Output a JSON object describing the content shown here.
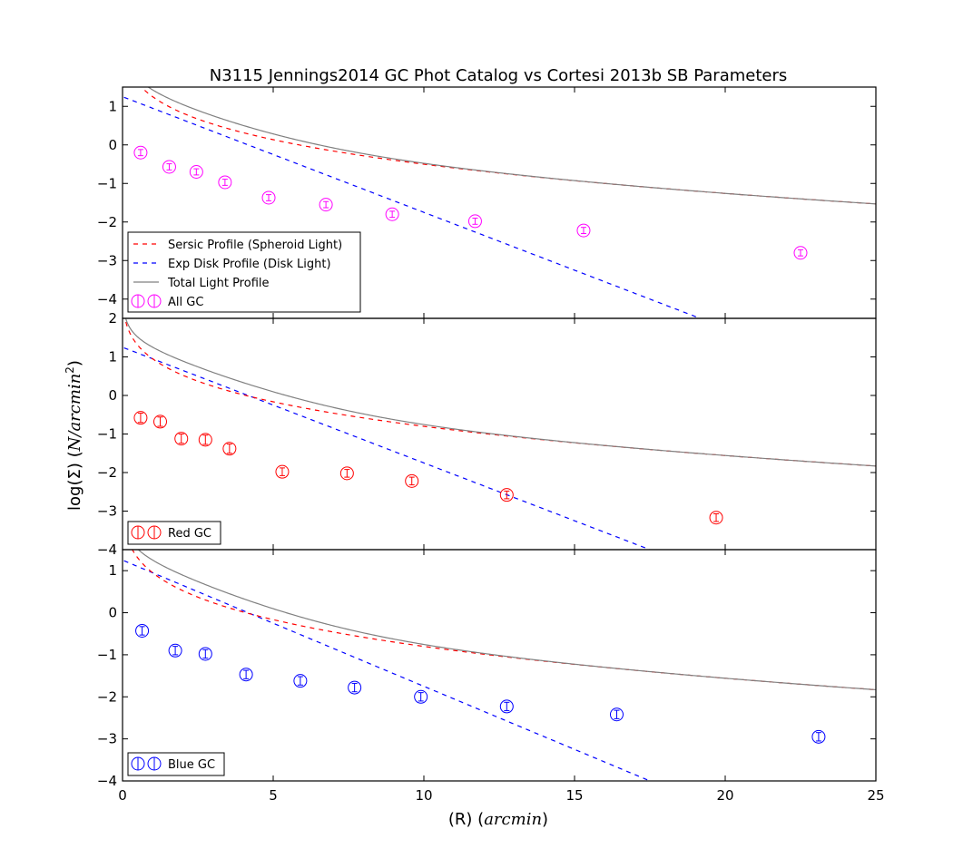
{
  "chart_data": {
    "type": "scatter",
    "title": "N3115 Jennings2014 GC Phot Catalog vs Cortesi 2013b SB Parameters",
    "xlabel_main": "(R) (",
    "xlabel_unit": "arcmin",
    "xlabel_close": ")",
    "ylabel_main": "log(Σ) (",
    "ylabel_unit": "N/arcmin",
    "ylabel_sup": "2",
    "ylabel_close": ")",
    "xlim": [
      0,
      25
    ],
    "x_ticks": [
      0,
      5,
      10,
      15,
      20,
      25
    ],
    "x_tick_labels": [
      "0",
      "5",
      "10",
      "15",
      "20",
      "25"
    ],
    "colors": {
      "sersic": "#ff0000",
      "disk": "#0000ff",
      "total": "#808080",
      "all_gc": "#ff00ff",
      "red_gc": "#ff0000",
      "blue_gc": "#0000ff"
    },
    "legend_common": [
      "Sersic Profile (Spheroid Light)",
      "Exp Disk Profile (Disk Light)",
      "Total Light Profile"
    ],
    "panels": [
      {
        "ylim": [
          -4.5,
          1.5
        ],
        "y_ticks": [
          1,
          0,
          -1,
          -2,
          -3,
          -4
        ],
        "y_tick_labels": [
          "1",
          "0",
          "−1",
          "−2",
          "−3",
          "−4"
        ],
        "series_name": "All GC",
        "color_key": "all_gc",
        "full_legend": true,
        "sersic_amp": 3.5,
        "disk_intercept": 1.25,
        "x": [
          0.6,
          1.55,
          2.45,
          3.4,
          4.85,
          6.75,
          8.95,
          11.7,
          15.3,
          22.5
        ],
        "y": [
          -0.2,
          -0.57,
          -0.7,
          -0.97,
          -1.37,
          -1.55,
          -1.8,
          -1.98,
          -2.22,
          -2.8
        ],
        "yerr": [
          0.08,
          0.08,
          0.08,
          0.08,
          0.08,
          0.08,
          0.08,
          0.08,
          0.08,
          0.08
        ]
      },
      {
        "ylim": [
          -4,
          2
        ],
        "y_ticks": [
          2,
          1,
          0,
          -1,
          -2,
          -3,
          -4
        ],
        "y_tick_labels": [
          "2",
          "1",
          "0",
          "−1",
          "−2",
          "−3",
          "−4"
        ],
        "series_name": "Red GC",
        "color_key": "red_gc",
        "full_legend": false,
        "sersic_amp": 3.2,
        "disk_intercept": 1.25,
        "x": [
          0.6,
          1.25,
          1.95,
          2.75,
          3.55,
          5.3,
          7.45,
          9.6,
          12.75,
          19.7
        ],
        "y": [
          -0.58,
          -0.68,
          -1.12,
          -1.15,
          -1.38,
          -1.98,
          -2.02,
          -2.22,
          -2.58,
          -3.17
        ],
        "yerr": [
          0.12,
          0.12,
          0.12,
          0.12,
          0.12,
          0.1,
          0.1,
          0.1,
          0.1,
          0.1
        ]
      },
      {
        "ylim": [
          -4,
          1.5
        ],
        "y_ticks": [
          1,
          0,
          -1,
          -2,
          -3,
          -4
        ],
        "y_tick_labels": [
          "1",
          "0",
          "−1",
          "−2",
          "−3",
          "−4"
        ],
        "series_name": "Blue GC",
        "color_key": "blue_gc",
        "full_legend": false,
        "sersic_amp": 3.2,
        "disk_intercept": 1.25,
        "x": [
          0.65,
          1.75,
          2.75,
          4.1,
          5.9,
          7.7,
          9.9,
          12.75,
          16.4,
          23.1
        ],
        "y": [
          -0.43,
          -0.9,
          -0.98,
          -1.47,
          -1.62,
          -1.78,
          -2.0,
          -2.23,
          -2.42,
          -2.95
        ],
        "yerr": [
          0.1,
          0.1,
          0.1,
          0.1,
          0.1,
          0.1,
          0.1,
          0.1,
          0.1,
          0.1
        ]
      }
    ]
  }
}
